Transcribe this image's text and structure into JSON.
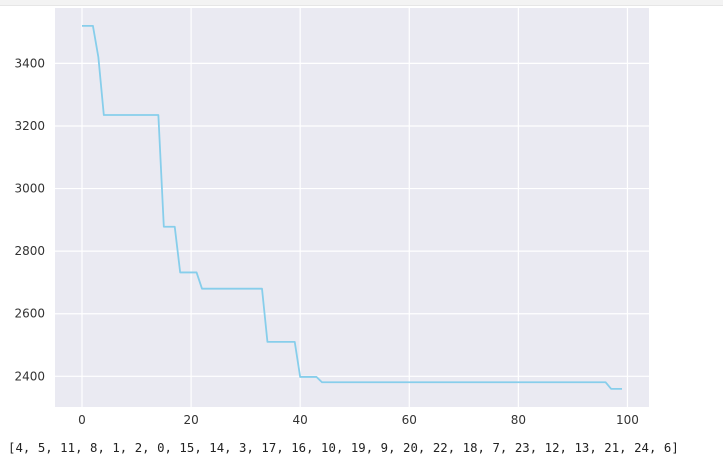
{
  "chart_data": {
    "type": "line",
    "title": "",
    "xlabel": "",
    "ylabel": "",
    "xlim": [
      -4.95,
      103.95
    ],
    "ylim": [
      2302,
      3577
    ],
    "xticks": [
      0,
      20,
      40,
      60,
      80,
      100
    ],
    "yticks": [
      2400,
      2600,
      2800,
      3000,
      3200,
      3400
    ],
    "grid": true,
    "background": "#eaeaf2",
    "grid_color": "#ffffff",
    "line_color": "#87ceeb",
    "series": [
      {
        "x": [
          0,
          2,
          3,
          4,
          14,
          15,
          17,
          18,
          21,
          22,
          33,
          34,
          39,
          40,
          43,
          44,
          96,
          97,
          99
        ],
        "y": [
          3520,
          3520,
          3420,
          3235,
          3235,
          2878,
          2878,
          2732,
          2732,
          2680,
          2680,
          2510,
          2510,
          2398,
          2398,
          2381,
          2381,
          2360,
          2360
        ]
      }
    ]
  },
  "output": {
    "text": "[4, 5, 11, 8, 1, 2, 0, 15, 14, 3, 17, 16, 10, 19, 9, 20, 22, 18, 7, 23, 12, 13, 21, 24, 6]"
  }
}
